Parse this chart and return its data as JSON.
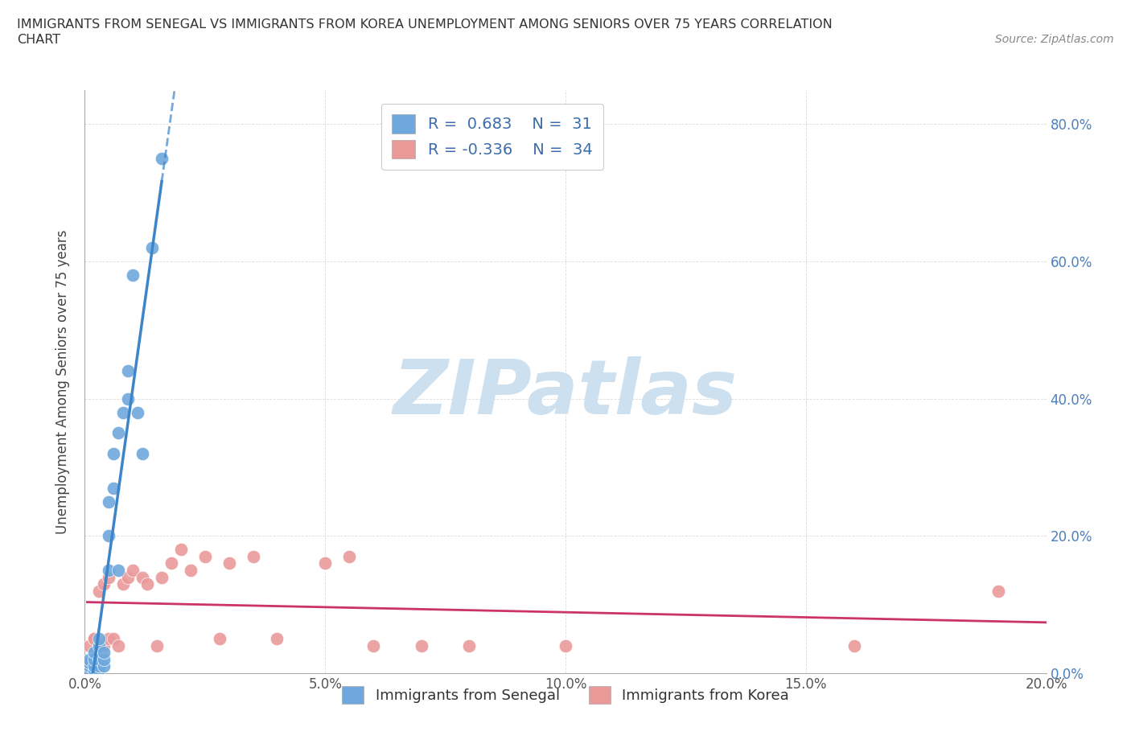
{
  "title_line1": "IMMIGRANTS FROM SENEGAL VS IMMIGRANTS FROM KOREA UNEMPLOYMENT AMONG SENIORS OVER 75 YEARS CORRELATION",
  "title_line2": "CHART",
  "source": "Source: ZipAtlas.com",
  "ylabel": "Unemployment Among Seniors over 75 years",
  "xlim": [
    0.0,
    0.2
  ],
  "ylim": [
    0.0,
    0.85
  ],
  "yticks": [
    0.0,
    0.2,
    0.4,
    0.6,
    0.8
  ],
  "xticks": [
    0.0,
    0.05,
    0.1,
    0.15,
    0.2
  ],
  "senegal_color": "#6fa8dc",
  "senegal_line_color": "#3d85c8",
  "korea_color": "#ea9999",
  "korea_line_color": "#cc3366",
  "senegal_R": 0.683,
  "senegal_N": 31,
  "korea_R": -0.336,
  "korea_N": 34,
  "watermark": "ZIPatlas",
  "watermark_color": "#cce0f0",
  "senegal_x": [
    0.001,
    0.001,
    0.001,
    0.001,
    0.002,
    0.002,
    0.002,
    0.002,
    0.003,
    0.003,
    0.003,
    0.003,
    0.003,
    0.004,
    0.004,
    0.004,
    0.005,
    0.005,
    0.005,
    0.006,
    0.006,
    0.007,
    0.007,
    0.008,
    0.009,
    0.009,
    0.01,
    0.011,
    0.012,
    0.014,
    0.016
  ],
  "senegal_y": [
    0.005,
    0.01,
    0.015,
    0.02,
    0.005,
    0.01,
    0.02,
    0.03,
    0.005,
    0.01,
    0.02,
    0.04,
    0.05,
    0.01,
    0.02,
    0.03,
    0.15,
    0.2,
    0.25,
    0.27,
    0.32,
    0.15,
    0.35,
    0.38,
    0.4,
    0.44,
    0.58,
    0.38,
    0.32,
    0.62,
    0.75
  ],
  "korea_x": [
    0.001,
    0.002,
    0.002,
    0.003,
    0.003,
    0.004,
    0.004,
    0.005,
    0.005,
    0.006,
    0.007,
    0.008,
    0.009,
    0.01,
    0.012,
    0.013,
    0.015,
    0.016,
    0.018,
    0.02,
    0.022,
    0.025,
    0.028,
    0.03,
    0.035,
    0.04,
    0.05,
    0.055,
    0.06,
    0.07,
    0.08,
    0.1,
    0.16,
    0.19
  ],
  "korea_y": [
    0.04,
    0.05,
    0.05,
    0.04,
    0.12,
    0.04,
    0.13,
    0.05,
    0.14,
    0.05,
    0.04,
    0.13,
    0.14,
    0.15,
    0.14,
    0.13,
    0.04,
    0.14,
    0.16,
    0.18,
    0.15,
    0.17,
    0.05,
    0.16,
    0.17,
    0.05,
    0.16,
    0.17,
    0.04,
    0.04,
    0.04,
    0.04,
    0.04,
    0.12
  ],
  "grid_color": "#cccccc",
  "background_color": "#ffffff",
  "legend_label1": "Immigrants from Senegal",
  "legend_label2": "Immigrants from Korea"
}
